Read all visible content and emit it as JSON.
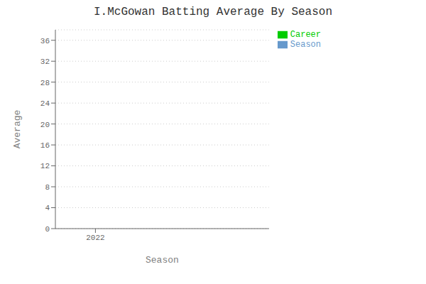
{
  "chart_data": {
    "type": "bar",
    "title": "I.McGowan Batting Average By Season",
    "xlabel": "Season",
    "ylabel": "Average",
    "x": [
      2022
    ],
    "series": [
      {
        "name": "Season",
        "color": "#6699cc",
        "values": [
          null
        ]
      },
      {
        "name": "Career",
        "color": "#00cc00",
        "values": [
          null
        ]
      }
    ],
    "xlim": [
      2021.7,
      2023.3
    ],
    "xticks": [
      2022
    ],
    "ylim": [
      0,
      38
    ],
    "yticks": [
      0,
      4,
      8,
      12,
      16,
      20,
      24,
      28,
      32,
      36
    ],
    "grid": "y",
    "legend": "upper right"
  }
}
